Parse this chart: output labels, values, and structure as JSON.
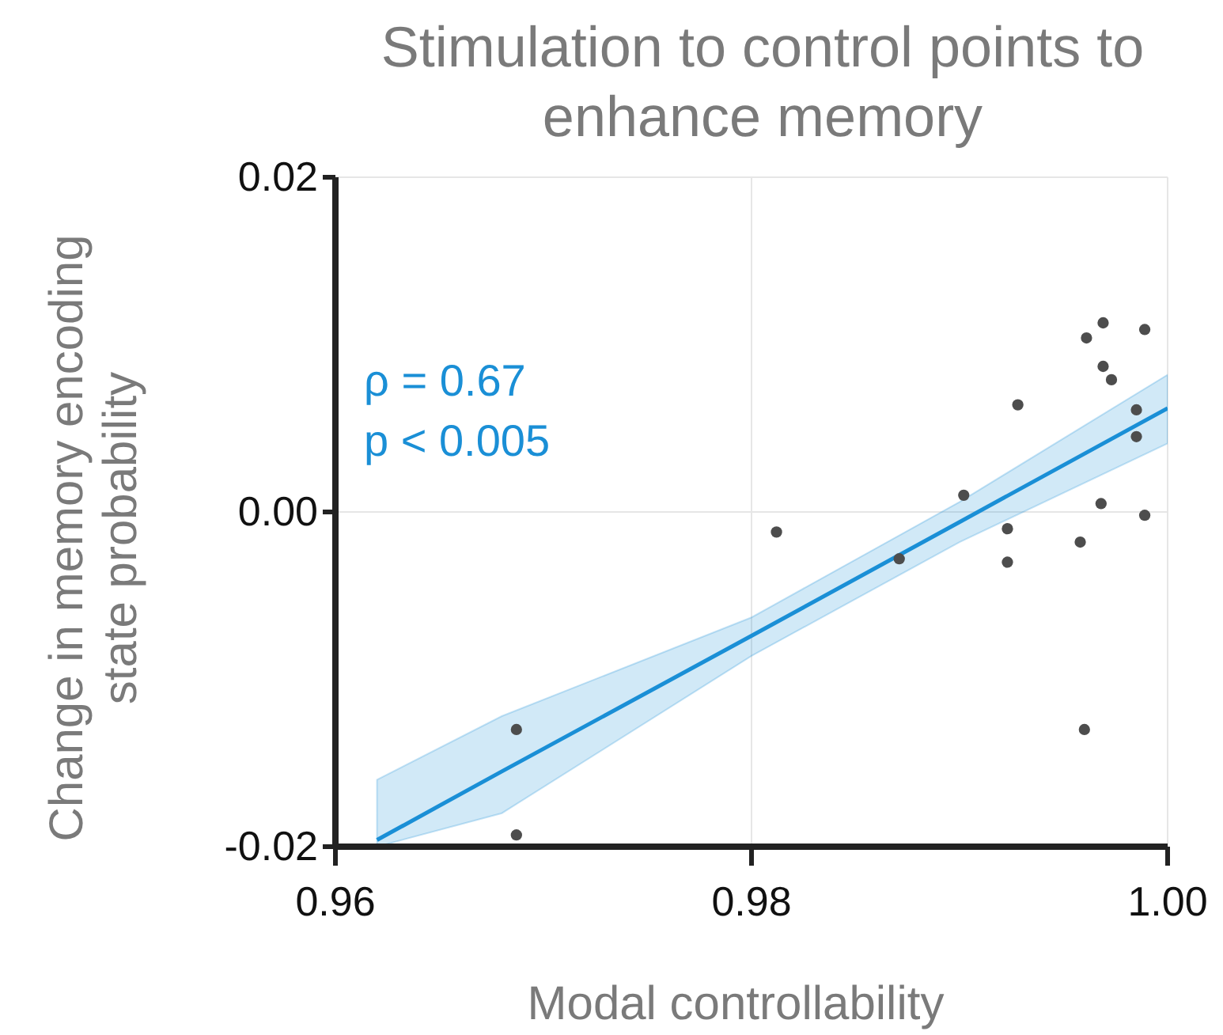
{
  "chart_data": {
    "type": "scatter",
    "title": "Stimulation to control points to enhance memory",
    "xlabel": "Modal controllability",
    "ylabel": "Change in memory encoding state probability",
    "annotations": [
      "ρ = 0.67",
      "p < 0.005"
    ],
    "xlim": [
      0.96,
      1.0
    ],
    "xticks": [
      0.96,
      0.98,
      {
        "value": 1.0,
        "label": "1.00"
      }
    ],
    "ylim": [
      -0.02,
      0.02
    ],
    "yticks": [
      {
        "value": -0.02,
        "label": "-0.02"
      },
      {
        "value": 0.0,
        "label": "0.00"
      },
      {
        "value": 0.02,
        "label": "0.02"
      }
    ],
    "grid": true,
    "marker": "circle",
    "series": [
      {
        "color": "#4d4d4d",
        "x": [
          0.9687,
          0.9687,
          0.9812,
          0.9871,
          0.9902,
          0.9923,
          0.9923,
          0.9928,
          0.9958,
          0.996,
          0.9961,
          0.9969,
          0.9969,
          0.9973,
          0.9968,
          0.9989,
          0.9985,
          0.9985,
          0.9989
        ],
        "values": [
          -0.013,
          -0.0193,
          -0.0012,
          -0.0028,
          0.001,
          -0.001,
          -0.003,
          0.0064,
          -0.0018,
          -0.013,
          0.0104,
          0.0113,
          0.0087,
          0.0079,
          0.0005,
          0.0109,
          0.0061,
          0.0045,
          -0.0002
        ]
      },
      {
        "type": "line",
        "marker": "none",
        "color": "#1a8fd6",
        "x": [
          0.962,
          0.968,
          0.98,
          0.99,
          1.0
        ],
        "values": [
          -0.0196,
          -0.0155,
          -0.0074,
          -0.0006,
          0.0062
        ],
        "lower": [
          -0.02,
          -0.018,
          -0.0086,
          -0.0018,
          0.0041
        ],
        "upper": [
          -0.016,
          -0.0122,
          -0.0063,
          0.0006,
          0.0082
        ]
      }
    ]
  }
}
